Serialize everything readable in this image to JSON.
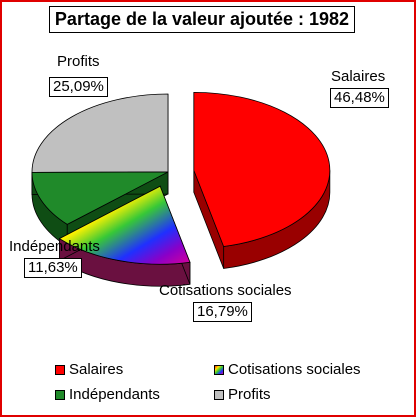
{
  "chart_data": {
    "type": "pie",
    "title": "Partage de la valeur ajoutée : 1982",
    "slices": [
      {
        "name": "Salaires",
        "value": 46.48,
        "label": "46,48%",
        "color": "#ff0000",
        "side": "#990000",
        "exploded": true
      },
      {
        "name": "Cotisations sociales",
        "value": 16.79,
        "label": "16,79%",
        "color": "rainbow",
        "side": "#6a1040",
        "exploded": true
      },
      {
        "name": "Indépendants",
        "value": 11.63,
        "label": "11,63%",
        "color": "#208a2a",
        "side": "#0f4d14",
        "exploded": false
      },
      {
        "name": "Profits",
        "value": 25.09,
        "label": "25,09%",
        "color": "#c0c0c0",
        "side": "#808080",
        "exploded": false
      }
    ],
    "legend_placement": "bottom",
    "three_d": true
  }
}
